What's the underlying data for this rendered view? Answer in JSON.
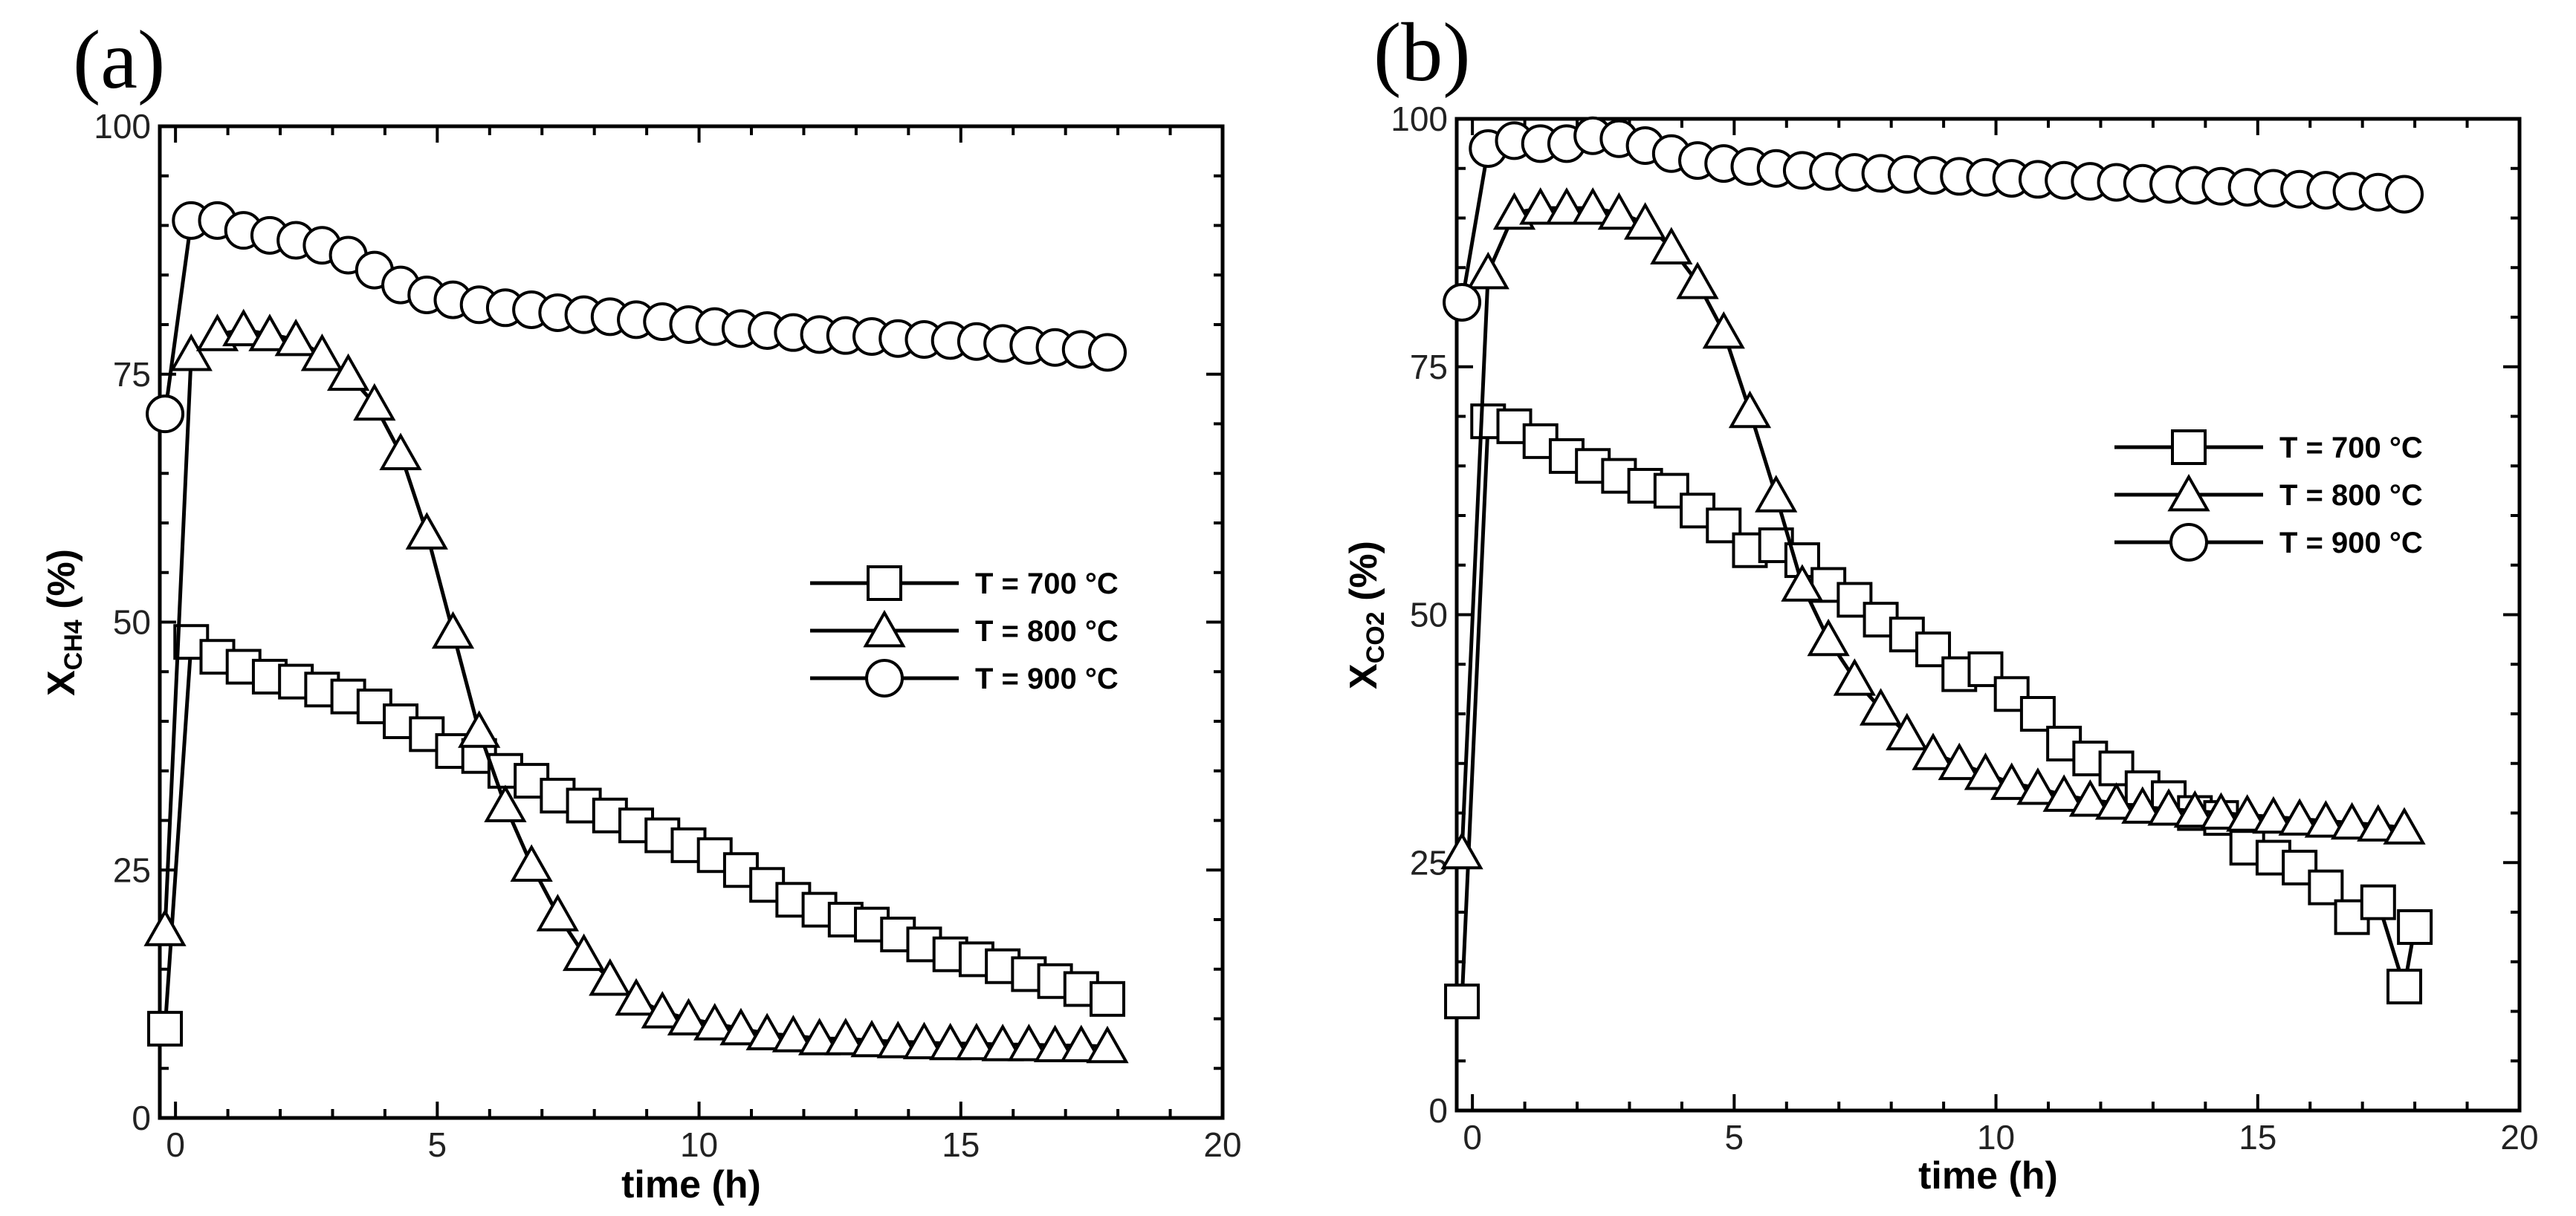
{
  "chart_data": [
    {
      "type": "line",
      "panel_label": "(a)",
      "xlabel": "time (h)",
      "ylabel_main": "X",
      "ylabel_sub": "CH4",
      "ylabel_unit": " (%)",
      "xlim": [
        -0.3,
        20
      ],
      "ylim": [
        0,
        100
      ],
      "x_ticks": [
        0,
        5,
        10,
        15,
        20
      ],
      "y_ticks": [
        0,
        25,
        50,
        75,
        100
      ],
      "legend_position": "center-right",
      "series": [
        {
          "name": "T = 700 °C",
          "marker": "square",
          "x": [
            -0.2,
            0.3,
            0.8,
            1.3,
            1.8,
            2.3,
            2.8,
            3.3,
            3.8,
            4.3,
            4.8,
            5.3,
            5.8,
            6.3,
            6.8,
            7.3,
            7.8,
            8.3,
            8.8,
            9.3,
            9.8,
            10.3,
            10.8,
            11.3,
            11.8,
            12.3,
            12.8,
            13.3,
            13.8,
            14.3,
            14.8,
            15.3,
            15.8,
            16.3,
            16.8,
            17.3,
            17.8
          ],
          "y": [
            9,
            48,
            46.5,
            45.5,
            44.5,
            44,
            43.2,
            42.5,
            41.5,
            40,
            38.7,
            37,
            36.5,
            35,
            34,
            32.5,
            31.5,
            30.5,
            29.5,
            28.5,
            27.5,
            26.5,
            25,
            23.5,
            22,
            21,
            20,
            19.5,
            18.5,
            17.5,
            16.5,
            16,
            15.3,
            14.5,
            13.8,
            13,
            12
          ]
        },
        {
          "name": "T = 800 °C",
          "marker": "triangle",
          "x": [
            -0.2,
            0.3,
            0.8,
            1.3,
            1.8,
            2.3,
            2.8,
            3.3,
            3.8,
            4.3,
            4.8,
            5.3,
            5.8,
            6.3,
            6.8,
            7.3,
            7.8,
            8.3,
            8.8,
            9.3,
            9.8,
            10.3,
            10.8,
            11.3,
            11.8,
            12.3,
            12.8,
            13.3,
            13.8,
            14.3,
            14.8,
            15.3,
            15.8,
            16.3,
            16.8,
            17.3,
            17.8
          ],
          "y": [
            19,
            77,
            79,
            79.5,
            79,
            78.5,
            77,
            75,
            72,
            67,
            59,
            49,
            39,
            31.5,
            25.5,
            20.5,
            16.5,
            14,
            12,
            10.7,
            10,
            9.5,
            9,
            8.5,
            8.3,
            8,
            8,
            7.8,
            7.7,
            7.6,
            7.5,
            7.5,
            7.4,
            7.4,
            7.3,
            7.3,
            7.2
          ]
        },
        {
          "name": "T = 900 °C",
          "marker": "circle",
          "x": [
            -0.2,
            0.3,
            0.8,
            1.3,
            1.8,
            2.3,
            2.8,
            3.3,
            3.8,
            4.3,
            4.8,
            5.3,
            5.8,
            6.3,
            6.8,
            7.3,
            7.8,
            8.3,
            8.8,
            9.3,
            9.8,
            10.3,
            10.8,
            11.3,
            11.8,
            12.3,
            12.8,
            13.3,
            13.8,
            14.3,
            14.8,
            15.3,
            15.8,
            16.3,
            16.8,
            17.3,
            17.8
          ],
          "y": [
            71,
            90.5,
            90.5,
            89.5,
            89,
            88.5,
            88,
            87,
            85.5,
            84,
            83,
            82.5,
            82,
            81.7,
            81.5,
            81.2,
            81,
            80.8,
            80.5,
            80.3,
            80,
            79.8,
            79.6,
            79.4,
            79.2,
            79,
            78.9,
            78.8,
            78.6,
            78.5,
            78.4,
            78.3,
            78.1,
            77.9,
            77.7,
            77.5,
            77.2
          ]
        }
      ]
    },
    {
      "type": "line",
      "panel_label": "(b)",
      "xlabel": "time (h)",
      "ylabel_main": "X",
      "ylabel_sub": "CO2",
      "ylabel_unit": " (%)",
      "xlim": [
        -0.3,
        20
      ],
      "ylim": [
        0,
        100
      ],
      "x_ticks": [
        0,
        5,
        10,
        15,
        20
      ],
      "y_ticks": [
        0,
        25,
        50,
        75,
        100
      ],
      "legend_position": "upper-right",
      "series": [
        {
          "name": "T = 700 °C",
          "marker": "square",
          "x": [
            -0.2,
            0.3,
            0.8,
            1.3,
            1.8,
            2.3,
            2.8,
            3.3,
            3.8,
            4.3,
            4.8,
            5.3,
            5.8,
            6.3,
            6.8,
            7.3,
            7.8,
            8.3,
            8.8,
            9.3,
            9.8,
            10.3,
            10.8,
            11.3,
            11.8,
            12.3,
            12.8,
            13.3,
            13.8,
            14.3,
            14.8,
            15.3,
            15.8,
            16.3,
            16.8,
            17.3,
            17.8,
            18.0
          ],
          "y": [
            11,
            69.5,
            69,
            67.5,
            66,
            65,
            64,
            63,
            62.5,
            60.5,
            59,
            56.5,
            57,
            55.5,
            53,
            51.5,
            49.5,
            48,
            46.5,
            44,
            44.5,
            42,
            40,
            37,
            35.5,
            34.5,
            32.5,
            31.5,
            30,
            29.5,
            26.5,
            25.5,
            24.5,
            22.5,
            19.5,
            21,
            12.5,
            18.5
          ]
        },
        {
          "name": "T = 800 °C",
          "marker": "triangle",
          "x": [
            -0.2,
            0.3,
            0.8,
            1.3,
            1.8,
            2.3,
            2.8,
            3.3,
            3.8,
            4.3,
            4.8,
            5.3,
            5.8,
            6.3,
            6.8,
            7.3,
            7.8,
            8.3,
            8.8,
            9.3,
            9.8,
            10.3,
            10.8,
            11.3,
            11.8,
            12.3,
            12.8,
            13.3,
            13.8,
            14.3,
            14.8,
            15.3,
            15.8,
            16.3,
            16.8,
            17.3,
            17.8
          ],
          "y": [
            26,
            84.5,
            90.5,
            91,
            91,
            91,
            90.5,
            89.5,
            87,
            83.5,
            78.5,
            70.5,
            62,
            53,
            47.5,
            43.5,
            40.5,
            38,
            36,
            35,
            34,
            33,
            32.5,
            31.8,
            31.3,
            31,
            30.6,
            30.4,
            30.2,
            30,
            29.8,
            29.6,
            29.4,
            29.2,
            29,
            28.8,
            28.5
          ]
        },
        {
          "name": "T = 900 °C",
          "marker": "circle",
          "x": [
            -0.2,
            0.3,
            0.8,
            1.3,
            1.8,
            2.3,
            2.8,
            3.3,
            3.8,
            4.3,
            4.8,
            5.3,
            5.8,
            6.3,
            6.8,
            7.3,
            7.8,
            8.3,
            8.8,
            9.3,
            9.8,
            10.3,
            10.8,
            11.3,
            11.8,
            12.3,
            12.8,
            13.3,
            13.8,
            14.3,
            14.8,
            15.3,
            15.8,
            16.3,
            16.8,
            17.3,
            17.8
          ],
          "y": [
            81.5,
            97,
            97.8,
            97.5,
            97.5,
            98.3,
            98,
            97.3,
            96.5,
            95.8,
            95.5,
            95.2,
            95,
            94.8,
            94.7,
            94.6,
            94.5,
            94.4,
            94.3,
            94.2,
            94.1,
            94,
            93.9,
            93.8,
            93.7,
            93.6,
            93.5,
            93.4,
            93.3,
            93.2,
            93.1,
            93,
            92.9,
            92.8,
            92.7,
            92.6,
            92.4
          ]
        }
      ]
    }
  ]
}
